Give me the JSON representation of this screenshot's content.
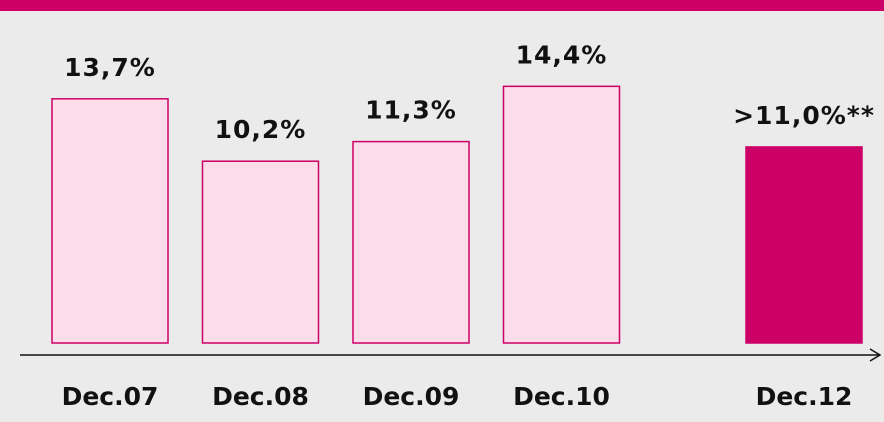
{
  "chart_data": {
    "type": "bar",
    "categories": [
      "Dec.07",
      "Dec.08",
      "Dec.09",
      "Dec.10",
      "Dec.12"
    ],
    "values": [
      13.7,
      10.2,
      11.3,
      14.4,
      11.0
    ],
    "value_labels": [
      "13,7%",
      "10,2%",
      "11,3%",
      "14,4%",
      ">11,0%**"
    ],
    "colors": [
      "#fddde9",
      "#fddde9",
      "#fddde9",
      "#fddde9",
      "#cc0066"
    ],
    "edgecolor": "#cc0066",
    "ylim": [
      0,
      17
    ]
  }
}
